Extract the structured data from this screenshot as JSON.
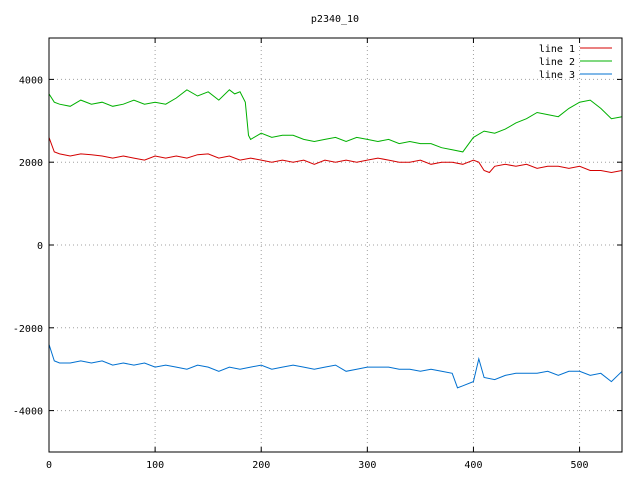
{
  "chart_data": {
    "type": "line",
    "title": "p2340_10",
    "xlabel": "",
    "ylabel": "",
    "xlim": [
      0,
      540
    ],
    "ylim": [
      -5000,
      5000
    ],
    "x_ticks": [
      0,
      100,
      200,
      300,
      400,
      500
    ],
    "y_ticks": [
      -4000,
      -2000,
      0,
      2000,
      4000
    ],
    "grid": true,
    "legend_position": "top-right",
    "series": [
      {
        "name": "line 1",
        "color": "#d40000",
        "x": [
          0,
          5,
          10,
          20,
          30,
          40,
          50,
          60,
          70,
          80,
          90,
          100,
          110,
          120,
          130,
          140,
          150,
          160,
          170,
          180,
          190,
          200,
          210,
          220,
          230,
          240,
          250,
          260,
          270,
          280,
          290,
          300,
          310,
          320,
          330,
          340,
          350,
          360,
          370,
          380,
          390,
          400,
          405,
          410,
          415,
          420,
          430,
          440,
          450,
          460,
          470,
          480,
          490,
          500,
          510,
          520,
          530,
          540
        ],
        "y": [
          2600,
          2250,
          2200,
          2150,
          2200,
          2180,
          2150,
          2100,
          2150,
          2100,
          2050,
          2150,
          2100,
          2150,
          2100,
          2180,
          2200,
          2100,
          2150,
          2050,
          2100,
          2050,
          2000,
          2050,
          2000,
          2050,
          1950,
          2050,
          2000,
          2050,
          2000,
          2050,
          2100,
          2050,
          2000,
          2000,
          2050,
          1950,
          2000,
          2000,
          1950,
          2050,
          2000,
          1800,
          1750,
          1900,
          1950,
          1900,
          1950,
          1850,
          1900,
          1900,
          1850,
          1900,
          1800,
          1800,
          1750,
          1800
        ]
      },
      {
        "name": "line 2",
        "color": "#00b000",
        "x": [
          0,
          5,
          10,
          20,
          30,
          40,
          50,
          60,
          70,
          80,
          90,
          100,
          110,
          120,
          130,
          140,
          150,
          160,
          170,
          175,
          180,
          185,
          188,
          190,
          200,
          210,
          220,
          230,
          240,
          250,
          260,
          270,
          280,
          290,
          300,
          310,
          320,
          330,
          340,
          350,
          360,
          370,
          380,
          390,
          400,
          410,
          420,
          430,
          440,
          450,
          460,
          470,
          480,
          490,
          500,
          510,
          520,
          530,
          540
        ],
        "y": [
          3650,
          3450,
          3400,
          3350,
          3500,
          3400,
          3450,
          3350,
          3400,
          3500,
          3400,
          3450,
          3400,
          3550,
          3750,
          3600,
          3700,
          3500,
          3750,
          3650,
          3700,
          3450,
          2650,
          2550,
          2700,
          2600,
          2650,
          2650,
          2550,
          2500,
          2550,
          2600,
          2500,
          2600,
          2550,
          2500,
          2550,
          2450,
          2500,
          2450,
          2450,
          2350,
          2300,
          2250,
          2600,
          2750,
          2700,
          2800,
          2950,
          3050,
          3200,
          3150,
          3100,
          3300,
          3450,
          3500,
          3300,
          3050,
          3100
        ]
      },
      {
        "name": "line 3",
        "color": "#0070d0",
        "x": [
          0,
          5,
          10,
          20,
          30,
          40,
          50,
          60,
          70,
          80,
          90,
          100,
          110,
          120,
          130,
          140,
          150,
          160,
          170,
          180,
          190,
          200,
          210,
          220,
          230,
          240,
          250,
          260,
          270,
          280,
          290,
          300,
          310,
          320,
          330,
          340,
          350,
          360,
          370,
          380,
          385,
          390,
          400,
          405,
          410,
          420,
          430,
          440,
          450,
          460,
          470,
          480,
          490,
          500,
          510,
          520,
          530,
          540
        ],
        "y": [
          -2400,
          -2800,
          -2850,
          -2850,
          -2800,
          -2850,
          -2800,
          -2900,
          -2850,
          -2900,
          -2850,
          -2950,
          -2900,
          -2950,
          -3000,
          -2900,
          -2950,
          -3050,
          -2950,
          -3000,
          -2950,
          -2900,
          -3000,
          -2950,
          -2900,
          -2950,
          -3000,
          -2950,
          -2900,
          -3050,
          -3000,
          -2950,
          -2950,
          -2950,
          -3000,
          -3000,
          -3050,
          -3000,
          -3050,
          -3100,
          -3450,
          -3400,
          -3300,
          -2750,
          -3200,
          -3250,
          -3150,
          -3100,
          -3100,
          -3100,
          -3050,
          -3150,
          -3050,
          -3050,
          -3150,
          -3100,
          -3300,
          -3050
        ]
      }
    ]
  }
}
